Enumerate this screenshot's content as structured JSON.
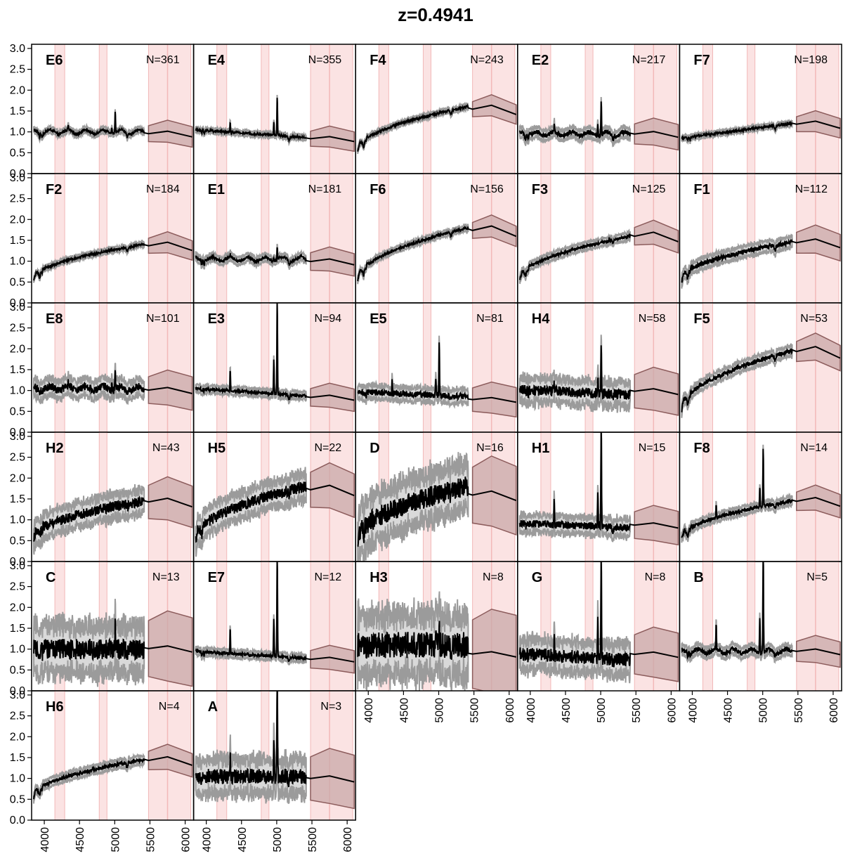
{
  "title": "z=0.4941",
  "chart_data": {
    "type": "line",
    "title": "z=0.4941",
    "xlabel": "",
    "ylabel": "",
    "xlim": [
      3820,
      6120
    ],
    "ylim": [
      0,
      3.1
    ],
    "y_ticks": [
      "0.0",
      "0.5",
      "1.0",
      "1.5",
      "2.0",
      "2.5",
      "3.0"
    ],
    "x_ticks": [
      "4000",
      "4500",
      "5000",
      "5500",
      "6000"
    ],
    "shaded_bands": [
      [
        4150,
        4290
      ],
      [
        4780,
        4890
      ],
      [
        5480,
        6080
      ]
    ],
    "band_lines": [
      5750
    ],
    "colors": {
      "line": "#000000",
      "envelope": "#9b9b9b",
      "envelope_fill": "#d9d9d9",
      "band": "#fbe3e3",
      "band_edge": "#f2b8b8",
      "tail_fill": "#c9a8a8",
      "tail_edge": "#8c5c5c"
    },
    "panels": [
      {
        "name": "E6",
        "n": "N=361",
        "shape": "flat",
        "level": 1.0,
        "noise": 0.07,
        "em": 0.5
      },
      {
        "name": "E4",
        "n": "N=355",
        "shape": "decline",
        "level": 1.0,
        "noise": 0.06,
        "em": 0.95
      },
      {
        "name": "F4",
        "n": "N=243",
        "shape": "rise",
        "level": 1.6,
        "noise": 0.06,
        "em": 0.0
      },
      {
        "name": "E2",
        "n": "N=217",
        "shape": "flat",
        "level": 0.95,
        "noise": 0.12,
        "em": 0.8
      },
      {
        "name": "F7",
        "n": "N=198",
        "shape": "risemild",
        "level": 1.2,
        "noise": 0.06,
        "em": 0.0
      },
      {
        "name": "F2",
        "n": "N=184",
        "shape": "rise",
        "level": 1.4,
        "noise": 0.06,
        "em": 0.0
      },
      {
        "name": "E1",
        "n": "N=181",
        "shape": "flat",
        "level": 1.05,
        "noise": 0.09,
        "em": 0.3
      },
      {
        "name": "F6",
        "n": "N=156",
        "shape": "rise",
        "level": 1.8,
        "noise": 0.07,
        "em": 0.0
      },
      {
        "name": "F3",
        "n": "N=125",
        "shape": "rise",
        "level": 1.6,
        "noise": 0.09,
        "em": 0.0
      },
      {
        "name": "F1",
        "n": "N=112",
        "shape": "rise",
        "level": 1.45,
        "noise": 0.13,
        "em": 0.0
      },
      {
        "name": "E8",
        "n": "N=101",
        "shape": "flat",
        "level": 1.05,
        "noise": 0.2,
        "em": 0.4
      },
      {
        "name": "E3",
        "n": "N=94",
        "shape": "decline",
        "level": 1.0,
        "noise": 0.09,
        "em": 2.3
      },
      {
        "name": "E5",
        "n": "N=81",
        "shape": "flatdown",
        "level": 0.95,
        "noise": 0.16,
        "em": 1.3
      },
      {
        "name": "H4",
        "n": "N=58",
        "shape": "flatdown",
        "level": 1.0,
        "noise": 0.28,
        "em": 1.1
      },
      {
        "name": "F5",
        "n": "N=53",
        "shape": "rise",
        "level": 1.95,
        "noise": 0.12,
        "em": 0.0
      },
      {
        "name": "H2",
        "n": "N=43",
        "shape": "rise",
        "level": 1.45,
        "noise": 0.28,
        "em": 0.0
      },
      {
        "name": "H5",
        "n": "N=22",
        "shape": "rise",
        "level": 1.8,
        "noise": 0.3,
        "em": 0.0
      },
      {
        "name": "D",
        "n": "N=16",
        "shape": "rise",
        "level": 1.8,
        "noise": 0.55,
        "em": 0.0
      },
      {
        "name": "H1",
        "n": "N=15",
        "shape": "flatdown",
        "level": 0.9,
        "noise": 0.2,
        "em": 2.6
      },
      {
        "name": "F8",
        "n": "N=14",
        "shape": "rise",
        "level": 1.45,
        "noise": 0.1,
        "em": 1.4
      },
      {
        "name": "C",
        "n": "N=13",
        "shape": "noisy",
        "level": 1.0,
        "noise": 0.55,
        "em": 0.5
      },
      {
        "name": "E7",
        "n": "N=12",
        "shape": "decline",
        "level": 0.9,
        "noise": 0.09,
        "em": 2.6
      },
      {
        "name": "H3",
        "n": "N=8",
        "shape": "noisy",
        "level": 1.1,
        "noise": 0.7,
        "em": 0.4
      },
      {
        "name": "G",
        "n": "N=8",
        "shape": "decline",
        "level": 0.85,
        "noise": 0.35,
        "em": 2.5
      },
      {
        "name": "B",
        "n": "N=5",
        "shape": "flat",
        "level": 0.95,
        "noise": 0.12,
        "em": 2.6
      },
      {
        "name": "H6",
        "n": "N=4",
        "shape": "rise",
        "level": 1.45,
        "noise": 0.1,
        "em": 0.0
      },
      {
        "name": "A",
        "n": "N=3",
        "shape": "noisy",
        "level": 1.05,
        "noise": 0.4,
        "em": 2.6
      }
    ]
  }
}
